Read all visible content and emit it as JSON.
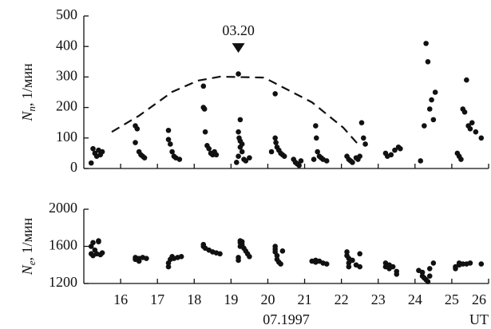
{
  "chart_data": [
    {
      "type": "scatter",
      "color": "#111111",
      "ylabel": {
        "symbol": "N",
        "subscript": "n",
        "unit": ", 1/мин"
      },
      "xlim": [
        15,
        26
      ],
      "xticks": [
        16,
        17,
        18,
        19,
        20,
        21,
        22,
        23,
        24,
        25,
        26
      ],
      "xticklabels": false,
      "ylim": [
        0,
        500
      ],
      "yticks": [
        0,
        100,
        200,
        300,
        400,
        500
      ],
      "annotation": {
        "text": "03.20",
        "x": 19.2,
        "y": 395
      },
      "curve": {
        "style": "dashed",
        "x": [
          15.76,
          16.5,
          17.4,
          18.1,
          18.7,
          19.9,
          21.2,
          22.05,
          22.5
        ],
        "values": [
          120,
          173,
          251,
          288,
          301,
          298,
          217,
          134,
          73
        ]
      },
      "x": [
        15.2,
        15.25,
        15.3,
        15.35,
        15.4,
        15.5,
        15.45,
        16.4,
        16.45,
        16.4,
        16.5,
        16.55,
        16.6,
        16.65,
        17.3,
        17.3,
        17.35,
        17.4,
        17.45,
        17.5,
        17.6,
        18.25,
        18.25,
        18.28,
        18.3,
        18.35,
        18.4,
        18.45,
        18.5,
        18.55,
        18.6,
        19.2,
        19.25,
        19.2,
        19.22,
        19.25,
        19.3,
        19.25,
        19.3,
        19.2,
        19.35,
        19.4,
        19.15,
        19.5,
        20.2,
        20.2,
        20.22,
        20.25,
        20.3,
        20.35,
        20.4,
        20.45,
        20.1,
        20.7,
        20.75,
        20.8,
        20.85,
        20.9,
        21.3,
        21.32,
        21.35,
        21.4,
        21.45,
        21.5,
        21.6,
        21.25,
        22.15,
        22.2,
        22.25,
        22.3,
        22.4,
        22.45,
        22.5,
        22.55,
        22.6,
        22.65,
        23.2,
        23.25,
        23.35,
        23.45,
        23.55,
        23.6,
        24.15,
        24.25,
        24.3,
        24.35,
        24.4,
        24.45,
        24.5,
        24.55,
        25.15,
        25.2,
        25.25,
        25.3,
        25.35,
        25.4,
        25.45,
        25.5,
        25.55,
        25.65,
        25.8
      ],
      "values": [
        18,
        65,
        50,
        40,
        60,
        55,
        45,
        140,
        130,
        85,
        55,
        45,
        40,
        35,
        125,
        95,
        80,
        55,
        40,
        35,
        30,
        270,
        200,
        195,
        120,
        75,
        65,
        50,
        45,
        55,
        45,
        310,
        160,
        120,
        100,
        90,
        80,
        70,
        55,
        40,
        30,
        25,
        20,
        35,
        245,
        100,
        85,
        70,
        60,
        50,
        45,
        40,
        55,
        30,
        20,
        15,
        10,
        25,
        140,
        100,
        55,
        40,
        35,
        30,
        25,
        30,
        40,
        30,
        25,
        20,
        35,
        30,
        40,
        150,
        100,
        80,
        50,
        40,
        45,
        60,
        70,
        65,
        25,
        140,
        410,
        350,
        195,
        225,
        160,
        250,
        50,
        40,
        30,
        195,
        185,
        290,
        140,
        130,
        150,
        120,
        100
      ]
    },
    {
      "type": "scatter",
      "color": "#111111",
      "ylabel": {
        "symbol": "N",
        "subscript": "e",
        "unit": ", 1/мин"
      },
      "xlabel": "07.1997",
      "xunit": "UT",
      "xlim": [
        15,
        26
      ],
      "xticks": [
        16,
        17,
        18,
        19,
        20,
        21,
        22,
        23,
        24,
        25,
        26
      ],
      "xticklabels": true,
      "ylim": [
        1200,
        2000
      ],
      "yticks": [
        1200,
        1600,
        2000
      ],
      "x": [
        15.2,
        15.2,
        15.25,
        15.25,
        15.3,
        15.35,
        15.4,
        15.4,
        15.45,
        15.5,
        16.4,
        16.4,
        16.5,
        16.5,
        16.6,
        16.7,
        17.3,
        17.3,
        17.35,
        17.4,
        17.45,
        17.55,
        17.65,
        18.25,
        18.25,
        18.3,
        18.4,
        18.5,
        18.6,
        18.7,
        19.2,
        19.2,
        19.25,
        19.25,
        19.25,
        19.3,
        19.3,
        19.35,
        19.4,
        19.45,
        19.5,
        20.2,
        20.2,
        20.2,
        20.25,
        20.25,
        20.3,
        20.35,
        20.4,
        21.2,
        21.3,
        21.3,
        21.4,
        21.5,
        21.6,
        22.15,
        22.15,
        22.2,
        22.2,
        22.2,
        22.3,
        22.4,
        22.5,
        22.5,
        23.2,
        23.2,
        23.3,
        23.3,
        23.4,
        23.5,
        23.5,
        24.1,
        24.2,
        24.2,
        24.25,
        24.3,
        24.35,
        24.4,
        24.4,
        24.5,
        25.1,
        25.1,
        25.2,
        25.2,
        25.3,
        25.4,
        25.5,
        25.8
      ],
      "values": [
        1520,
        1600,
        1640,
        1500,
        1560,
        1520,
        1650,
        1660,
        1510,
        1530,
        1480,
        1460,
        1470,
        1440,
        1480,
        1470,
        1380,
        1420,
        1460,
        1490,
        1470,
        1480,
        1490,
        1600,
        1620,
        1580,
        1560,
        1540,
        1530,
        1520,
        1450,
        1480,
        1640,
        1600,
        1660,
        1650,
        1620,
        1580,
        1550,
        1520,
        1490,
        1600,
        1570,
        1540,
        1500,
        1460,
        1430,
        1410,
        1550,
        1440,
        1450,
        1430,
        1440,
        1420,
        1410,
        1540,
        1500,
        1470,
        1420,
        1380,
        1450,
        1400,
        1520,
        1380,
        1420,
        1380,
        1400,
        1360,
        1380,
        1330,
        1300,
        1340,
        1320,
        1280,
        1260,
        1240,
        1220,
        1280,
        1360,
        1420,
        1380,
        1360,
        1420,
        1400,
        1410,
        1410,
        1420,
        1410
      ]
    }
  ]
}
